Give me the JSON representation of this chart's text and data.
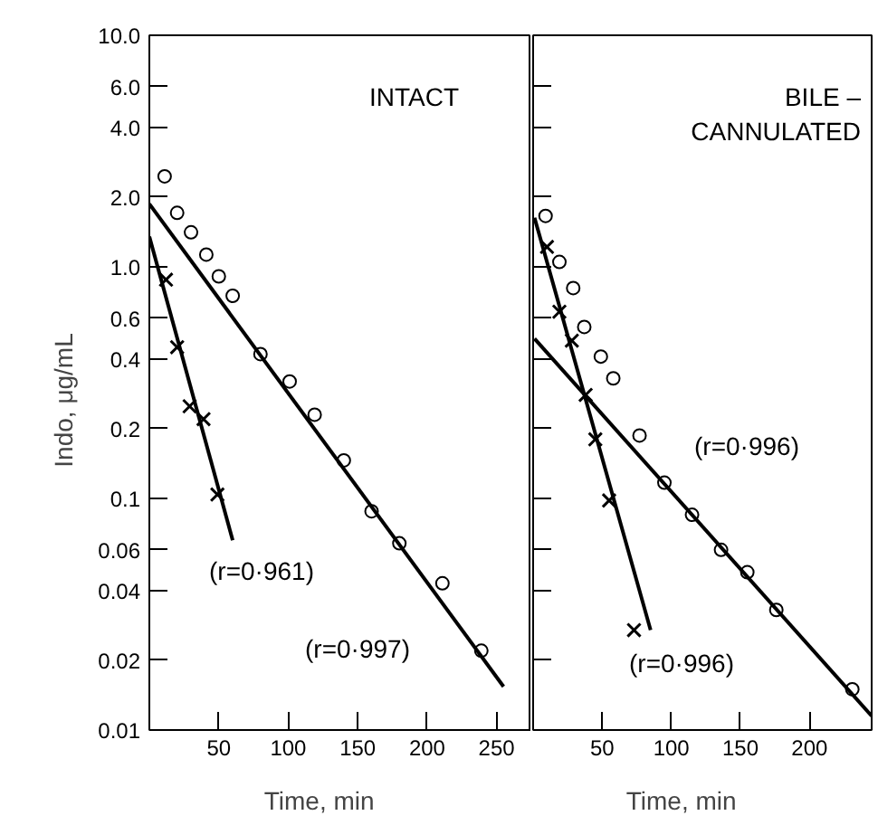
{
  "chart_data": [
    {
      "type": "scatter",
      "title": "INTACT",
      "ylabel": "Indo,      μg/mL",
      "xlabel": "Time,       min",
      "log": "y",
      "xlim": [
        0,
        275
      ],
      "xticks": [
        50,
        100,
        150,
        200,
        250
      ],
      "ylim": [
        0.01,
        10
      ],
      "yticks": [
        {
          "value": 10,
          "label": "10.0"
        },
        {
          "value": 6,
          "label": "6.0"
        },
        {
          "value": 4,
          "label": "4.0"
        },
        {
          "value": 2,
          "label": "2.0"
        },
        {
          "value": 1,
          "label": "1.0"
        },
        0.6,
        0.4,
        0.2,
        0.1,
        0.06,
        0.04,
        0.02,
        0.01
      ],
      "series": [
        {
          "marker": "circle",
          "color": "#000000",
          "x": [
            11,
            20,
            30,
            41,
            50,
            60,
            80,
            101,
            119,
            140,
            160,
            180,
            211,
            239
          ],
          "values": [
            2.46,
            1.71,
            1.41,
            1.13,
            0.91,
            0.75,
            0.42,
            0.32,
            0.23,
            0.146,
            0.088,
            0.064,
            0.043,
            0.022
          ]
        },
        {
          "marker": "cross",
          "color": "#000000",
          "x": [
            12,
            20,
            29,
            39,
            49
          ],
          "values": [
            0.88,
            0.45,
            0.25,
            0.22,
            0.104
          ]
        },
        {
          "type": "line",
          "color": "#000000",
          "x": [
            0,
            255
          ],
          "values": [
            1.87,
            0.0154
          ]
        },
        {
          "type": "line",
          "color": "#000000",
          "x": [
            0,
            60
          ],
          "values": [
            1.35,
            0.066
          ]
        }
      ],
      "annotations": [
        "(r=0·961)",
        "(r=0·997)"
      ]
    },
    {
      "type": "scatter",
      "title": "BILE –\nCANNULATED",
      "xlabel": "Time,       min",
      "log": "y",
      "tick_labels": "x",
      "xlim": [
        0,
        245
      ],
      "xticks": [
        50,
        100,
        150,
        200
      ],
      "ylim": [
        0.01,
        10
      ],
      "yticks": [
        10,
        6,
        4,
        2,
        1,
        0.6,
        0.4,
        0.2,
        0.1,
        0.06,
        0.04,
        0.02,
        0.01
      ],
      "series": [
        {
          "marker": "circle",
          "color": "#000000",
          "x": [
            9,
            19,
            29,
            37,
            49,
            58,
            77,
            95,
            115,
            136,
            155,
            176,
            231
          ],
          "values": [
            1.66,
            1.05,
            0.81,
            0.55,
            0.41,
            0.33,
            0.187,
            0.117,
            0.085,
            0.06,
            0.048,
            0.033,
            0.015
          ]
        },
        {
          "marker": "cross",
          "color": "#000000",
          "x": [
            10,
            19,
            28,
            38,
            45,
            55,
            73
          ],
          "values": [
            1.22,
            0.64,
            0.48,
            0.28,
            0.18,
            0.098,
            0.027
          ]
        },
        {
          "type": "line",
          "color": "#000000",
          "x": [
            1,
            245
          ],
          "values": [
            0.49,
            0.0115
          ]
        },
        {
          "type": "line",
          "color": "#000000",
          "x": [
            1,
            85
          ],
          "values": [
            1.63,
            0.027
          ]
        }
      ],
      "annotations": [
        "(r=0·996)",
        "(r=0·996)"
      ]
    }
  ]
}
